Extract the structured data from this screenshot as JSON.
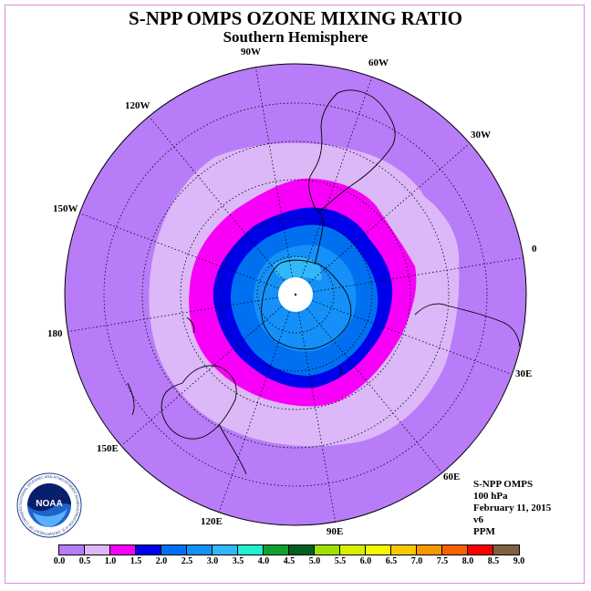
{
  "title": "S-NPP OMPS OZONE MIXING RATIO",
  "subtitle": "Southern Hemisphere",
  "longitude_labels": {
    "l90w": "90W",
    "l60w": "60W",
    "l30w": "30W",
    "l0": "0",
    "l120w": "120W",
    "l150w": "150W",
    "l180": "180",
    "l30e": "30E",
    "l60e": "60E",
    "l90e": "90E",
    "l120e": "120E",
    "l150e": "150E"
  },
  "info": {
    "instrument": "S-NPP OMPS",
    "level": "100 hPa",
    "date": "February 11, 2015",
    "version": "v6",
    "units": "PPM"
  },
  "logo": {
    "text": "NOAA",
    "ring_text": "NATIONAL OCEANIC AND ATMOSPHERIC ADMINISTRATION U.S. DEPARTMENT OF COMMERCE"
  },
  "colorbar": {
    "colors": [
      "#b87cf8",
      "#dcb8f8",
      "#f800f8",
      "#0000e8",
      "#0070f0",
      "#1490f8",
      "#30b8f8",
      "#20f0d0",
      "#10a030",
      "#006020",
      "#a0e000",
      "#d8f000",
      "#f8f800",
      "#f8c800",
      "#f89800",
      "#f86000",
      "#f80000",
      "#806040"
    ],
    "ticks": [
      "0.0",
      "0.5",
      "1.0",
      "1.5",
      "2.0",
      "2.5",
      "3.0",
      "3.5",
      "4.0",
      "4.5",
      "5.0",
      "5.5",
      "6.0",
      "6.5",
      "7.0",
      "7.5",
      "8.0",
      "8.5",
      "9.0"
    ]
  }
}
